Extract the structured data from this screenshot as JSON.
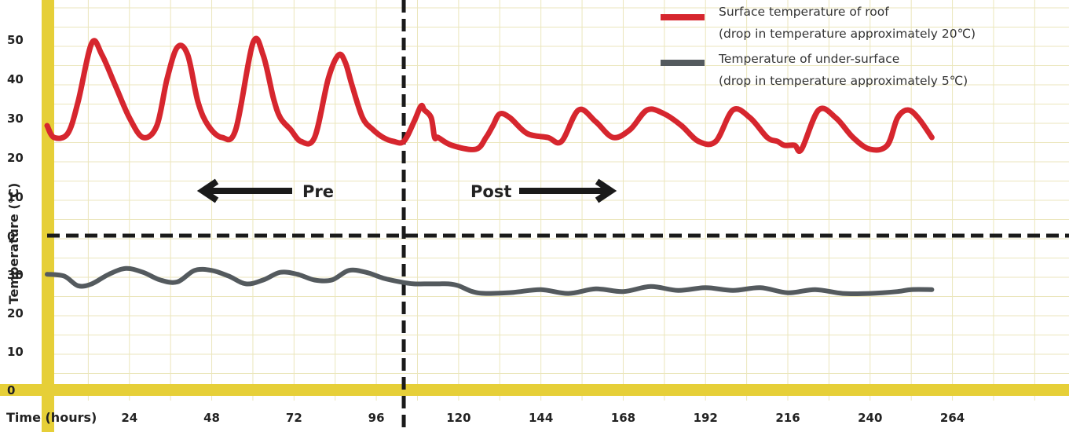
{
  "chart_data": {
    "type": "line",
    "xlabel": "Time (hours)",
    "ylabel": "Temperature (℃)",
    "x_ticks": [
      24,
      48,
      72,
      96,
      120,
      144,
      168,
      192,
      216,
      240,
      264
    ],
    "upper_y_ticks": [
      0,
      10,
      20,
      30,
      40,
      50
    ],
    "lower_y_ticks": [
      0,
      10,
      20,
      30
    ],
    "upper_ylim": [
      0,
      58
    ],
    "lower_ylim": [
      0,
      38
    ],
    "xlim": [
      0,
      298
    ],
    "divider_x": 104,
    "divider_y": 0,
    "grid": true,
    "legend_position": "top-right",
    "annotations": {
      "pre": "Pre",
      "post": "Post"
    },
    "colors": {
      "surface": "#d6262e",
      "under": "#545a5e",
      "axis": "#e6cf38",
      "grid": "#ebe6bc",
      "divider": "#1a1a1a",
      "arrow": "#1a1a1a"
    },
    "series": [
      {
        "name": "Surface temperature of roof",
        "name_line2": "(drop in temperature approximately 20℃)",
        "color": "#d6262e",
        "x": [
          0,
          2,
          6,
          9,
          13,
          16,
          20,
          24,
          28,
          32,
          35,
          38,
          41,
          44,
          47,
          51,
          55,
          60,
          63,
          66,
          68,
          71,
          74,
          78,
          82,
          85,
          87,
          89,
          92,
          95,
          98,
          101,
          104,
          107,
          109,
          110,
          112,
          113,
          114,
          118,
          125,
          128,
          130,
          132,
          135,
          140,
          146,
          150,
          155,
          160,
          165,
          170,
          175,
          180,
          185,
          190,
          195,
          200,
          205,
          210,
          213,
          215,
          218,
          220,
          225,
          230,
          235,
          240,
          245,
          248,
          251,
          254,
          258
        ],
        "y": [
          28,
          25,
          26,
          34,
          49,
          46,
          38,
          30,
          25,
          28,
          40,
          48,
          46,
          34,
          28,
          25,
          27,
          49,
          46,
          35,
          30,
          27,
          24,
          25,
          40,
          46,
          44,
          38,
          30,
          27,
          25,
          24,
          24,
          29,
          33,
          32,
          30,
          25,
          25,
          23,
          22,
          25,
          28,
          31,
          30,
          26,
          25,
          24,
          32,
          29,
          25,
          27,
          32,
          31,
          28,
          24,
          24,
          32,
          30,
          25,
          24,
          23,
          23,
          22,
          32,
          30,
          25,
          22,
          23,
          30,
          32,
          30,
          25
        ]
      },
      {
        "name": "Temperature of under-surface",
        "name_line2": "(drop in temperature approximately 5℃)",
        "color": "#545a5e",
        "x": [
          0,
          5,
          9,
          13,
          18,
          23,
          28,
          33,
          38,
          43,
          48,
          53,
          58,
          63,
          68,
          73,
          78,
          83,
          88,
          93,
          98,
          103,
          107,
          110,
          114,
          117,
          120,
          124,
          128,
          136,
          144,
          152,
          160,
          168,
          176,
          184,
          192,
          200,
          208,
          216,
          224,
          232,
          240,
          248,
          252,
          258
        ],
        "y": [
          30,
          29.5,
          27,
          27.5,
          30,
          31.5,
          30.5,
          28.5,
          28,
          31,
          31,
          29.5,
          27.5,
          28.5,
          30.5,
          30,
          28.5,
          28.5,
          31,
          30.5,
          29,
          28,
          27.5,
          27.5,
          27.5,
          27.5,
          27,
          25.5,
          25,
          25.3,
          26,
          25,
          26.2,
          25.5,
          26.8,
          25.8,
          26.5,
          25.8,
          26.5,
          25.2,
          26,
          25,
          25,
          25.5,
          26,
          26
        ]
      }
    ]
  }
}
